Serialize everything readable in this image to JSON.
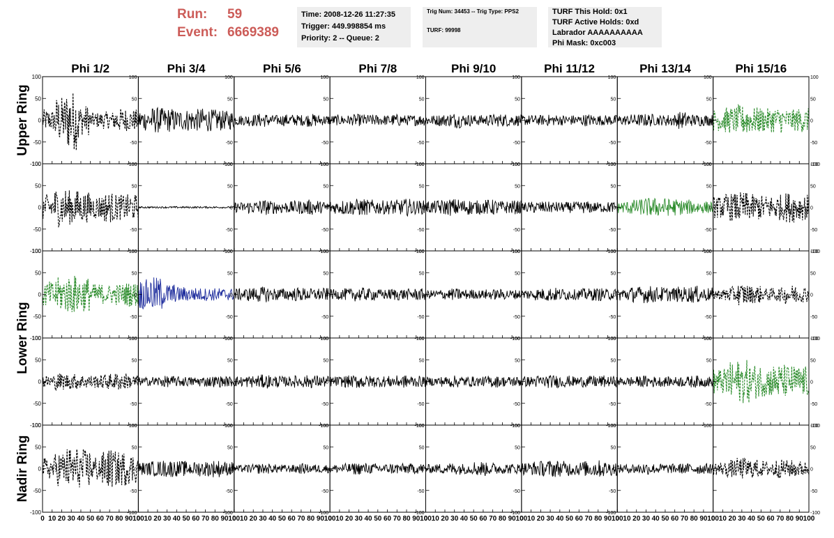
{
  "header": {
    "run_label": "Run:",
    "run_value": "59",
    "event_label": "Event:",
    "event_value": "6669389"
  },
  "info1": {
    "time": "Time: 2008-12-26 11:27:35",
    "trigger": "Trigger: 449.998854 ms",
    "priority": "Priority: 2 -- Queue: 2"
  },
  "info2": {
    "trig": "Trig Num: 34453 -- Trig Type: PPS2",
    "turf": "TURF: 99998"
  },
  "info3": {
    "hold": "TURF This Hold: 0x1",
    "active": "TURF Active Holds: 0xd",
    "labrador": "Labrador AAAAAAAAAA",
    "phimask": "Phi Mask: 0xc003"
  },
  "chart_data": {
    "type": "line",
    "columns": [
      "Phi 1/2",
      "Phi 3/4",
      "Phi 5/6",
      "Phi 7/8",
      "Phi 9/10",
      "Phi 11/12",
      "Phi 13/14",
      "Phi 15/16"
    ],
    "rows": [
      "Upper Ring",
      "",
      "Lower Ring",
      "",
      "Nadir Ring"
    ],
    "xlim": [
      0,
      100
    ],
    "ylim": [
      -100,
      100
    ],
    "xticks": [
      0,
      10,
      20,
      30,
      40,
      50,
      60,
      70,
      80,
      90,
      100
    ],
    "xtick_labels": [
      "0",
      "10",
      "20",
      "30",
      "40",
      "50",
      "60",
      "70",
      "80",
      "90",
      "100"
    ],
    "ytick_labels": [
      "100",
      "50",
      "0",
      "-50",
      "-100"
    ],
    "colors": {
      "black": "#000000",
      "green": "#2c8c2c",
      "blue": "#1c2b9c",
      "title_red": "#cc5c58"
    },
    "panels": [
      [
        {
          "style": "dashed",
          "color": "black",
          "amp": [
            25,
            55,
            70,
            35,
            18,
            20,
            28,
            25
          ]
        },
        {
          "style": "solid",
          "color": "black",
          "amp": [
            25,
            30,
            28,
            24,
            26,
            28,
            25,
            22
          ]
        },
        {
          "style": "solid",
          "color": "black",
          "amp": [
            12,
            14,
            16,
            12,
            14,
            13,
            15,
            12
          ]
        },
        {
          "style": "solid",
          "color": "black",
          "amp": [
            12,
            12,
            14,
            13,
            12,
            14,
            12,
            13
          ]
        },
        {
          "style": "solid",
          "color": "black",
          "amp": [
            12,
            14,
            18,
            14,
            12,
            14,
            15,
            13
          ]
        },
        {
          "style": "solid",
          "color": "black",
          "amp": [
            12,
            12,
            13,
            12,
            12,
            14,
            12,
            12
          ]
        },
        {
          "style": "solid",
          "color": "black",
          "amp": [
            12,
            14,
            15,
            12,
            14,
            20,
            14,
            13
          ]
        },
        {
          "style": "dashed",
          "color": "green",
          "amp": [
            25,
            30,
            35,
            30,
            28,
            30,
            25,
            28
          ]
        }
      ],
      [
        {
          "style": "dashed",
          "color": "black",
          "amp": [
            30,
            45,
            40,
            35,
            28,
            35,
            30,
            30
          ]
        },
        {
          "style": "solid",
          "color": "black",
          "amp": [
            2,
            2,
            2,
            2,
            2,
            2,
            2,
            2
          ]
        },
        {
          "style": "solid",
          "color": "black",
          "amp": [
            12,
            15,
            18,
            15,
            14,
            16,
            18,
            14
          ]
        },
        {
          "style": "solid",
          "color": "black",
          "amp": [
            15,
            18,
            20,
            18,
            16,
            18,
            20,
            16
          ]
        },
        {
          "style": "solid",
          "color": "black",
          "amp": [
            15,
            18,
            20,
            18,
            16,
            18,
            15,
            16
          ]
        },
        {
          "style": "solid",
          "color": "black",
          "amp": [
            12,
            14,
            13,
            12,
            13,
            14,
            12,
            13
          ]
        },
        {
          "style": "solid",
          "color": "green",
          "amp": [
            14,
            18,
            22,
            22,
            20,
            18,
            16,
            14
          ]
        },
        {
          "style": "dashed",
          "color": "black",
          "amp": [
            25,
            32,
            35,
            30,
            28,
            30,
            35,
            30
          ]
        }
      ],
      [
        {
          "style": "dashed",
          "color": "green",
          "amp": [
            30,
            40,
            45,
            40,
            25,
            22,
            25,
            28
          ]
        },
        {
          "style": "solid",
          "color": "blue",
          "amp": [
            35,
            40,
            25,
            18,
            16,
            15,
            15,
            14
          ]
        },
        {
          "style": "solid",
          "color": "black",
          "amp": [
            14,
            16,
            18,
            15,
            14,
            16,
            14,
            15
          ]
        },
        {
          "style": "solid",
          "color": "black",
          "amp": [
            12,
            14,
            16,
            14,
            12,
            14,
            13,
            14
          ]
        },
        {
          "style": "solid",
          "color": "black",
          "amp": [
            10,
            12,
            14,
            12,
            10,
            12,
            12,
            11
          ]
        },
        {
          "style": "solid",
          "color": "black",
          "amp": [
            12,
            14,
            16,
            14,
            12,
            14,
            15,
            13
          ]
        },
        {
          "style": "solid",
          "color": "black",
          "amp": [
            16,
            18,
            20,
            18,
            16,
            18,
            20,
            16
          ]
        },
        {
          "style": "dashed",
          "color": "black",
          "amp": [
            12,
            18,
            25,
            20,
            14,
            16,
            22,
            18
          ]
        }
      ],
      [
        {
          "style": "dashed",
          "color": "black",
          "amp": [
            15,
            20,
            18,
            16,
            15,
            18,
            20,
            16
          ]
        },
        {
          "style": "solid",
          "color": "black",
          "amp": [
            10,
            12,
            13,
            12,
            11,
            12,
            13,
            12
          ]
        },
        {
          "style": "solid",
          "color": "black",
          "amp": [
            12,
            14,
            16,
            14,
            12,
            14,
            15,
            13
          ]
        },
        {
          "style": "solid",
          "color": "black",
          "amp": [
            12,
            14,
            16,
            14,
            13,
            14,
            15,
            13
          ]
        },
        {
          "style": "solid",
          "color": "black",
          "amp": [
            10,
            12,
            14,
            12,
            11,
            14,
            12,
            12
          ]
        },
        {
          "style": "solid",
          "color": "black",
          "amp": [
            12,
            14,
            15,
            14,
            12,
            13,
            14,
            12
          ]
        },
        {
          "style": "solid",
          "color": "black",
          "amp": [
            10,
            12,
            14,
            12,
            11,
            12,
            14,
            12
          ]
        },
        {
          "style": "dashed",
          "color": "green",
          "amp": [
            30,
            45,
            50,
            40,
            35,
            40,
            38,
            35
          ]
        }
      ],
      [
        {
          "style": "dashed",
          "color": "black",
          "amp": [
            25,
            40,
            50,
            45,
            30,
            45,
            40,
            35
          ]
        },
        {
          "style": "solid",
          "color": "black",
          "amp": [
            15,
            18,
            20,
            18,
            16,
            18,
            20,
            16
          ]
        },
        {
          "style": "solid",
          "color": "black",
          "amp": [
            8,
            10,
            12,
            10,
            9,
            12,
            10,
            10
          ]
        },
        {
          "style": "solid",
          "color": "black",
          "amp": [
            10,
            12,
            14,
            12,
            11,
            13,
            12,
            12
          ]
        },
        {
          "style": "solid",
          "color": "black",
          "amp": [
            10,
            12,
            14,
            12,
            18,
            14,
            12,
            12
          ]
        },
        {
          "style": "solid",
          "color": "black",
          "amp": [
            15,
            18,
            20,
            18,
            16,
            18,
            20,
            16
          ]
        },
        {
          "style": "solid",
          "color": "black",
          "amp": [
            10,
            12,
            14,
            12,
            11,
            12,
            13,
            12
          ]
        },
        {
          "style": "dashed",
          "color": "black",
          "amp": [
            15,
            20,
            25,
            22,
            18,
            22,
            20,
            18
          ]
        }
      ]
    ]
  }
}
